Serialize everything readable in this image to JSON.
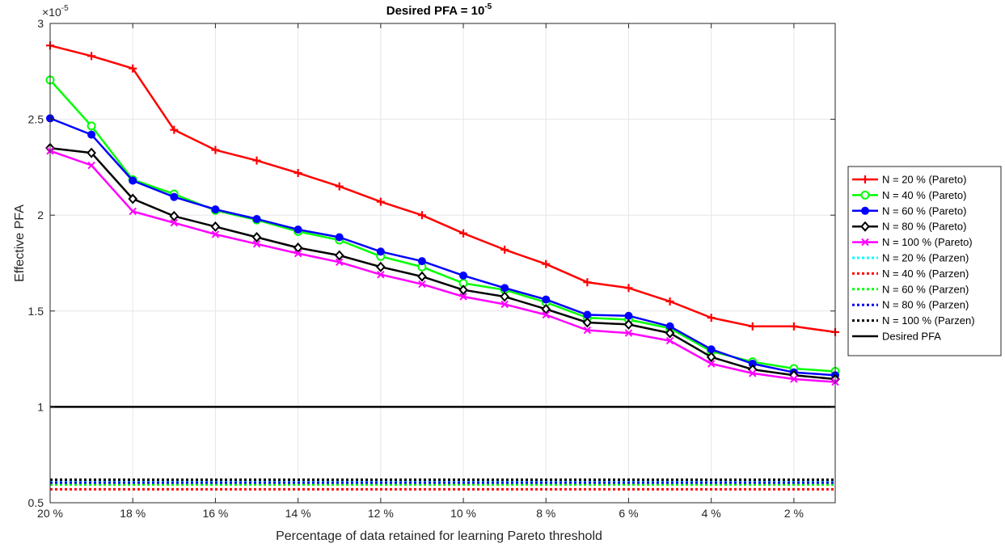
{
  "chart_data": {
    "type": "line",
    "title": "Desired PFA = 10",
    "title_superscript": "-5",
    "xlabel": "Percentage of data retained for learning Pareto threshold",
    "ylabel": "Effective PFA",
    "y_exponent": "×10",
    "y_exponent_power": "-5",
    "grid": true,
    "legend_position": "outside-right",
    "x_direction": "reversed",
    "xlim": [
      1,
      20
    ],
    "ylim": [
      0.5,
      3
    ],
    "x_ticks": [
      20,
      18,
      16,
      14,
      12,
      10,
      8,
      6,
      4,
      2
    ],
    "x_tick_labels": [
      "20 %",
      "18 %",
      "16 %",
      "14 %",
      "12 %",
      "10 %",
      "8 %",
      "6 %",
      "4 %",
      "2 %"
    ],
    "y_ticks": [
      0.5,
      1,
      1.5,
      2,
      2.5,
      3
    ],
    "y_tick_labels": [
      "0.5",
      "1",
      "1.5",
      "2",
      "2.5",
      "3"
    ],
    "x": [
      20,
      19,
      18,
      17,
      16,
      15,
      14,
      13,
      12,
      11,
      10,
      9,
      8,
      7,
      6,
      5,
      4,
      3,
      2,
      1
    ],
    "series": [
      {
        "name": "N = 20 % (Pareto)",
        "color": "#ff0000",
        "marker": "plus",
        "style": "solid",
        "values": [
          2.885,
          2.83,
          2.765,
          2.445,
          2.34,
          2.285,
          2.22,
          2.15,
          2.07,
          2.0,
          1.905,
          1.82,
          1.745,
          1.65,
          1.62,
          1.55,
          1.465,
          1.42,
          1.42,
          1.39
        ]
      },
      {
        "name": "N = 40 % (Pareto)",
        "color": "#00ff00",
        "marker": "circle",
        "style": "solid",
        "values": [
          2.705,
          2.465,
          2.185,
          2.11,
          2.025,
          1.975,
          1.915,
          1.87,
          1.785,
          1.73,
          1.645,
          1.61,
          1.545,
          1.465,
          1.455,
          1.41,
          1.29,
          1.235,
          1.2,
          1.185
        ]
      },
      {
        "name": "N = 60 % (Pareto)",
        "color": "#0000ff",
        "marker": "dot",
        "style": "solid",
        "values": [
          2.505,
          2.42,
          2.18,
          2.095,
          2.03,
          1.98,
          1.925,
          1.885,
          1.81,
          1.76,
          1.685,
          1.62,
          1.56,
          1.48,
          1.475,
          1.42,
          1.3,
          1.225,
          1.18,
          1.165
        ]
      },
      {
        "name": "N = 80 % (Pareto)",
        "color": "#000000",
        "marker": "diamond",
        "style": "solid",
        "values": [
          2.35,
          2.325,
          2.085,
          1.995,
          1.94,
          1.885,
          1.83,
          1.79,
          1.73,
          1.68,
          1.61,
          1.575,
          1.51,
          1.44,
          1.43,
          1.385,
          1.26,
          1.195,
          1.165,
          1.145
        ]
      },
      {
        "name": "N = 100 % (Pareto)",
        "color": "#ff00ff",
        "marker": "cross",
        "style": "solid",
        "values": [
          2.335,
          2.26,
          2.02,
          1.96,
          1.9,
          1.85,
          1.8,
          1.755,
          1.69,
          1.64,
          1.575,
          1.535,
          1.48,
          1.4,
          1.385,
          1.345,
          1.225,
          1.175,
          1.145,
          1.13
        ]
      },
      {
        "name": "N = 20 % (Parzen)",
        "color": "#00ffff",
        "marker": "none",
        "style": "dotted",
        "values": [
          0.61,
          0.61,
          0.61,
          0.61,
          0.61,
          0.61,
          0.61,
          0.61,
          0.61,
          0.61,
          0.61,
          0.61,
          0.61,
          0.61,
          0.61,
          0.61,
          0.61,
          0.61,
          0.61,
          0.61
        ]
      },
      {
        "name": "N = 40 % (Parzen)",
        "color": "#ff0000",
        "marker": "none",
        "style": "dotted",
        "values": [
          0.57,
          0.57,
          0.57,
          0.57,
          0.57,
          0.57,
          0.57,
          0.57,
          0.57,
          0.57,
          0.57,
          0.57,
          0.57,
          0.57,
          0.57,
          0.57,
          0.57,
          0.57,
          0.57,
          0.57
        ]
      },
      {
        "name": "N = 60 % (Parzen)",
        "color": "#00ff00",
        "marker": "none",
        "style": "dotted",
        "values": [
          0.595,
          0.595,
          0.595,
          0.595,
          0.595,
          0.595,
          0.595,
          0.595,
          0.595,
          0.595,
          0.595,
          0.595,
          0.595,
          0.595,
          0.595,
          0.595,
          0.595,
          0.595,
          0.595,
          0.595
        ]
      },
      {
        "name": "N = 80 % (Parzen)",
        "color": "#0000ff",
        "marker": "none",
        "style": "dotted",
        "values": [
          0.605,
          0.605,
          0.605,
          0.605,
          0.605,
          0.605,
          0.605,
          0.605,
          0.605,
          0.605,
          0.605,
          0.605,
          0.605,
          0.605,
          0.605,
          0.605,
          0.605,
          0.605,
          0.605,
          0.605
        ]
      },
      {
        "name": "N = 100 % (Parzen)",
        "color": "#000000",
        "marker": "none",
        "style": "dotted",
        "values": [
          0.62,
          0.62,
          0.62,
          0.62,
          0.62,
          0.62,
          0.62,
          0.62,
          0.62,
          0.62,
          0.62,
          0.62,
          0.62,
          0.62,
          0.62,
          0.62,
          0.62,
          0.62,
          0.62,
          0.62
        ]
      },
      {
        "name": "Desired PFA",
        "color": "#000000",
        "marker": "none",
        "style": "solid",
        "values": [
          1,
          1,
          1,
          1,
          1,
          1,
          1,
          1,
          1,
          1,
          1,
          1,
          1,
          1,
          1,
          1,
          1,
          1,
          1,
          1
        ]
      }
    ]
  }
}
